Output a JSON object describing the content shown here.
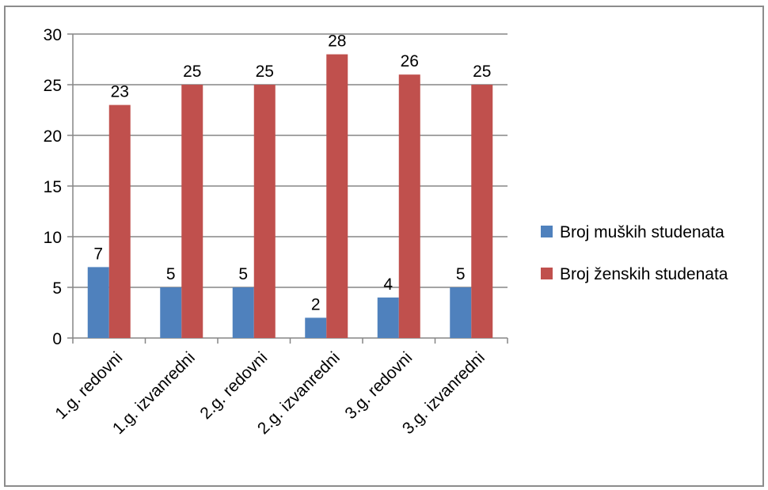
{
  "chart_data": {
    "type": "bar",
    "categories": [
      "1.g. redovni",
      "1.g. izvanredni",
      "2.g. redovni",
      "2.g. izvanredni",
      "3.g. redovni",
      "3.g. izvanredni"
    ],
    "series": [
      {
        "name": "Broj muških studenata",
        "values": [
          7,
          5,
          5,
          2,
          4,
          5
        ],
        "color": "#4f81bd"
      },
      {
        "name": "Broj ženskih studenata",
        "values": [
          23,
          25,
          25,
          28,
          26,
          25
        ],
        "color": "#c0504d"
      }
    ],
    "ylim": [
      0,
      30
    ],
    "yticks": [
      0,
      5,
      10,
      15,
      20,
      25,
      30
    ],
    "grid": true,
    "legend": "right",
    "data_labels": true
  }
}
